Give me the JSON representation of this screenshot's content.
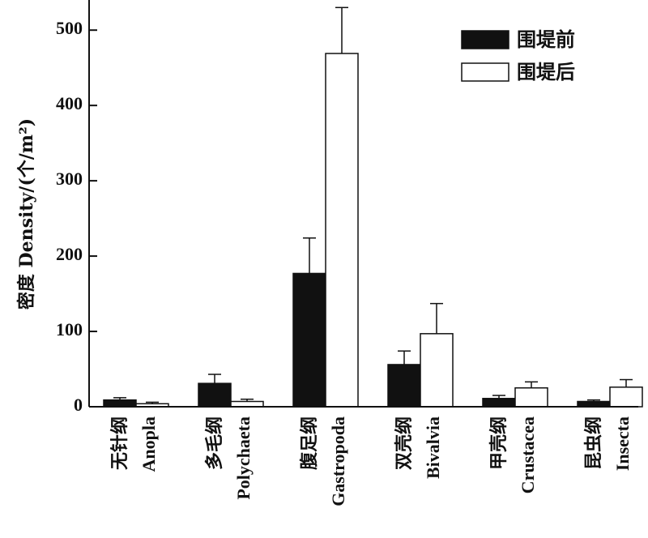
{
  "chart_data": {
    "type": "bar",
    "categories": [
      {
        "zh": "无针纲",
        "en": "Anopla"
      },
      {
        "zh": "多毛纲",
        "en": "Polychaeta"
      },
      {
        "zh": "腹足纲",
        "en": "Gastropoda"
      },
      {
        "zh": "双壳纲",
        "en": "Bivalvia"
      },
      {
        "zh": "甲壳纲",
        "en": "Crustacea"
      },
      {
        "zh": "昆虫纲",
        "en": "Insecta"
      }
    ],
    "series": [
      {
        "name": "围堤前",
        "color": "#111111",
        "values": [
          9,
          31,
          177,
          56,
          11,
          7
        ],
        "errors": [
          3,
          12,
          47,
          18,
          4,
          2
        ]
      },
      {
        "name": "围堤后",
        "color": "#ffffff",
        "values": [
          4,
          7,
          469,
          97,
          25,
          26
        ],
        "errors": [
          2,
          3,
          61,
          40,
          8,
          10
        ]
      }
    ],
    "ylabel": "密度 Density/(个/m²)",
    "xlabel": "",
    "ylim": [
      0,
      540
    ],
    "yticks": [
      0,
      100,
      200,
      300,
      400,
      500
    ],
    "legend_position": "top-right",
    "grid": false
  }
}
